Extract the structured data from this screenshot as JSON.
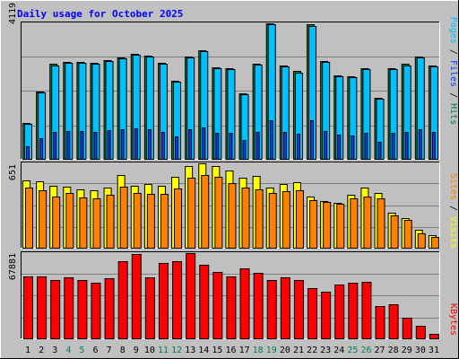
{
  "title": "Daily usage for October 2025",
  "colors": {
    "background": "#c0c0c0",
    "plot_bg": "#c0c0c0",
    "title": "#0000ff",
    "hits": "#008040",
    "files": "#0040ff",
    "pages": "#00c0ff",
    "visits": "#ffff00",
    "sites": "#ff8000",
    "kbytes": "#ff0000",
    "weekend_label": "#00805c",
    "weekday_label": "#000000"
  },
  "legend": {
    "hits": "Hits",
    "files": "Files",
    "pages": "Pages",
    "visits": "Visits",
    "sites": "Sites",
    "kbytes": "KBytes",
    "sep": " / "
  },
  "chart_data": [
    {
      "type": "bar",
      "panel": "hits-files-pages",
      "ymax_label": "4119",
      "ylim": [
        0,
        4119
      ],
      "categories": [
        "1",
        "2",
        "3",
        "4",
        "5",
        "6",
        "7",
        "8",
        "9",
        "10",
        "11",
        "12",
        "13",
        "14",
        "15",
        "16",
        "17",
        "18",
        "19",
        "20",
        "21",
        "22",
        "23",
        "24",
        "25",
        "26",
        "27",
        "28",
        "29",
        "30",
        "31"
      ],
      "weekend_days": [
        "4",
        "5",
        "11",
        "12",
        "18",
        "19",
        "25",
        "26"
      ],
      "series": [
        {
          "name": "Hits",
          "values": [
            1090,
            2050,
            2880,
            2940,
            2940,
            2910,
            2990,
            3090,
            3190,
            3140,
            2910,
            2370,
            3120,
            3300,
            2790,
            2750,
            1980,
            2900,
            4119,
            2850,
            2660,
            4080,
            2970,
            2550,
            2520,
            2750,
            1850,
            2750,
            2880,
            3120,
            2850
          ]
        },
        {
          "name": "Files",
          "values": [
            380,
            620,
            820,
            840,
            850,
            830,
            860,
            890,
            920,
            900,
            830,
            680,
            900,
            950,
            800,
            790,
            570,
            830,
            1180,
            820,
            760,
            1170,
            850,
            730,
            720,
            790,
            530,
            790,
            820,
            900,
            820
          ]
        },
        {
          "name": "Pages",
          "values": [
            1070,
            2020,
            2850,
            2910,
            2910,
            2880,
            2960,
            3060,
            3160,
            3110,
            2880,
            2340,
            3090,
            3270,
            2760,
            2720,
            1960,
            2870,
            4090,
            2820,
            2630,
            4050,
            2940,
            2520,
            2490,
            2720,
            1830,
            2720,
            2850,
            3090,
            2820
          ]
        }
      ]
    },
    {
      "type": "bar",
      "panel": "visits-sites",
      "ymax_label": "651",
      "ylim": [
        0,
        651
      ],
      "series": [
        {
          "name": "Visits",
          "values": [
            516,
            513,
            481,
            473,
            453,
            445,
            465,
            558,
            476,
            493,
            476,
            544,
            628,
            651,
            633,
            594,
            538,
            554,
            466,
            493,
            506,
            398,
            363,
            343,
            407,
            463,
            419,
            272,
            230,
            137,
            95
          ]
        },
        {
          "name": "Sites",
          "values": [
            463,
            443,
            398,
            425,
            390,
            378,
            408,
            473,
            421,
            413,
            415,
            460,
            540,
            563,
            546,
            500,
            465,
            453,
            423,
            433,
            443,
            368,
            353,
            340,
            383,
            393,
            383,
            246,
            213,
            109,
            81
          ]
        }
      ]
    },
    {
      "type": "bar",
      "panel": "kbytes",
      "ymax_label": "67881",
      "ylim": [
        0,
        67881
      ],
      "series": [
        {
          "name": "KBytes",
          "values": [
            49340,
            49000,
            46370,
            48850,
            46600,
            44340,
            48200,
            61340,
            67000,
            48760,
            60340,
            61570,
            67881,
            58900,
            52960,
            48950,
            55400,
            52160,
            46270,
            48440,
            46240,
            39890,
            37210,
            43150,
            44260,
            44880,
            25570,
            26870,
            16090,
            10000,
            3400
          ]
        }
      ]
    }
  ]
}
